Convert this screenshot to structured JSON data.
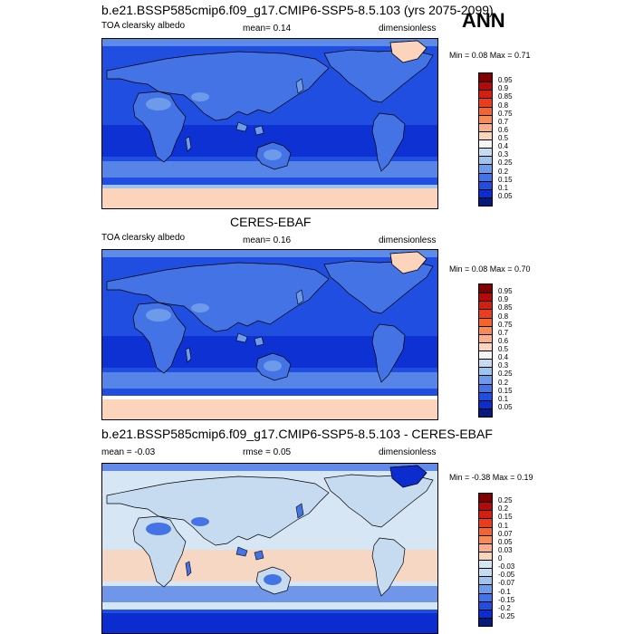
{
  "header": {
    "ann_label": "ANN"
  },
  "panels": [
    {
      "title": "b.e21.BSSP585cmip6.f09_g17.CMIP6-SSP5-8.5.103 (yrs 2075-2099)",
      "left_label": "TOA clearsky albedo",
      "center_label": "mean=  0.14",
      "right_label": "dimensionless",
      "minmax": "Min =   0.08 Max =   0.71",
      "colorbar": {
        "labels": [
          "0.95",
          "0.9",
          "0.85",
          "0.8",
          "0.75",
          "0.7",
          "0.6",
          "0.5",
          "0.4",
          "0.3",
          "0.25",
          "0.2",
          "0.15",
          "0.1",
          "0.05"
        ],
        "colors": [
          "#800000",
          "#b40a0a",
          "#d21f12",
          "#eb3d1e",
          "#f5642d",
          "#f88a57",
          "#faae8c",
          "#fcd3bb",
          "#f5f5f5",
          "#c6dbf0",
          "#9ec4ee",
          "#6d9bea",
          "#4473e6",
          "#1f4ee0",
          "#0b2dcf",
          "#07197c"
        ]
      },
      "map_colors": {
        "ocean": "#1f4ee0",
        "ocean_deep": "#0b2dcf",
        "land": "#4473e6",
        "land_alt": "#6d9bea",
        "polar": "#fcd3bb",
        "polar_edge": "#9ec4ee"
      }
    },
    {
      "title": "CERES-EBAF",
      "left_label": "TOA clearsky albedo",
      "center_label": "mean=  0.16",
      "right_label": "dimensionless",
      "minmax": "Min =   0.08 Max =   0.70",
      "colorbar": {
        "labels": [
          "0.95",
          "0.9",
          "0.85",
          "0.8",
          "0.75",
          "0.7",
          "0.6",
          "0.5",
          "0.4",
          "0.3",
          "0.25",
          "0.2",
          "0.15",
          "0.1",
          "0.05"
        ],
        "colors": [
          "#800000",
          "#b40a0a",
          "#d21f12",
          "#eb3d1e",
          "#f5642d",
          "#f88a57",
          "#faae8c",
          "#fcd3bb",
          "#f5f5f5",
          "#c6dbf0",
          "#9ec4ee",
          "#6d9bea",
          "#4473e6",
          "#1f4ee0",
          "#0b2dcf",
          "#07197c"
        ]
      },
      "map_colors": {
        "ocean": "#1f4ee0",
        "ocean_deep": "#0b2dcf",
        "land": "#4473e6",
        "land_alt": "#6d9bea",
        "polar": "#fcd3bb",
        "polar_edge": "#ffffff"
      }
    },
    {
      "title": "b.e21.BSSP585cmip6.f09_g17.CMIP6-SSP5-8.5.103 - CERES-EBAF",
      "left_label": "mean =  -0.03",
      "center_label": "rmse =  0.05",
      "right_label": "dimensionless",
      "minmax": "Min =  -0.38 Max =   0.19",
      "colorbar": {
        "labels": [
          "0.25",
          "0.2",
          "0.15",
          "0.1",
          "0.07",
          "0.05",
          "0.03",
          "0",
          "-0.03",
          "-0.05",
          "-0.07",
          "-0.1",
          "-0.15",
          "-0.2",
          "-0.25"
        ],
        "colors": [
          "#800000",
          "#b40a0a",
          "#d21f12",
          "#eb3d1e",
          "#f5642d",
          "#f88a57",
          "#faae8c",
          "#fcd3bb",
          "#d7e6f5",
          "#c6dbf0",
          "#9ec4ee",
          "#6d9bea",
          "#4473e6",
          "#1f4ee0",
          "#0b2dcf",
          "#07197c"
        ]
      },
      "map_colors": {
        "ocean": "#d7e6f5",
        "ocean_deep": "#fcd3bb",
        "land": "#c6dbf0",
        "land_alt": "#4473e6",
        "polar": "#0b2dcf",
        "polar_edge": "#1f4ee0"
      }
    }
  ]
}
